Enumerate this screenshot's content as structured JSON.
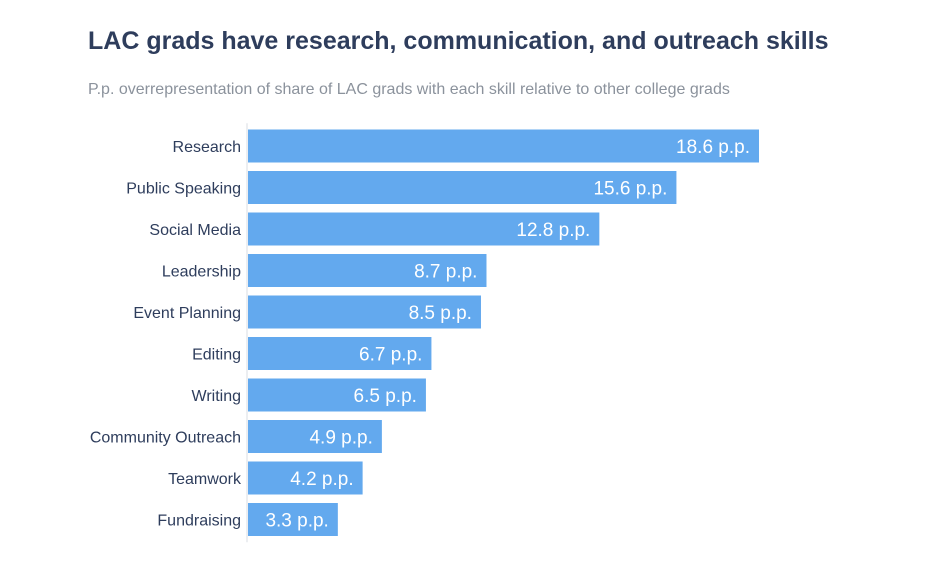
{
  "chart_data": {
    "type": "bar",
    "orientation": "horizontal",
    "title": "LAC grads have research, communication, and outreach skills",
    "subtitle": "P.p. overrepresentation of share of LAC grads with each skill relative to other college grads",
    "categories": [
      "Research",
      "Public Speaking",
      "Social Media",
      "Leadership",
      "Event Planning",
      "Editing",
      "Writing",
      "Community Outreach",
      "Teamwork",
      "Fundraising"
    ],
    "values": [
      18.6,
      15.6,
      12.8,
      8.7,
      8.5,
      6.7,
      6.5,
      4.9,
      4.2,
      3.3
    ],
    "value_labels": [
      "18.6 p.p.",
      "15.6 p.p.",
      "12.8 p.p.",
      "8.7 p.p.",
      "8.5 p.p.",
      "6.7 p.p.",
      "6.5 p.p.",
      "4.9 p.p.",
      "4.2 p.p.",
      "3.3 p.p."
    ],
    "xlim": [
      0,
      18.6
    ],
    "grid": false,
    "bar_color": "#63a9ee",
    "value_label_color": "#ffffff"
  }
}
